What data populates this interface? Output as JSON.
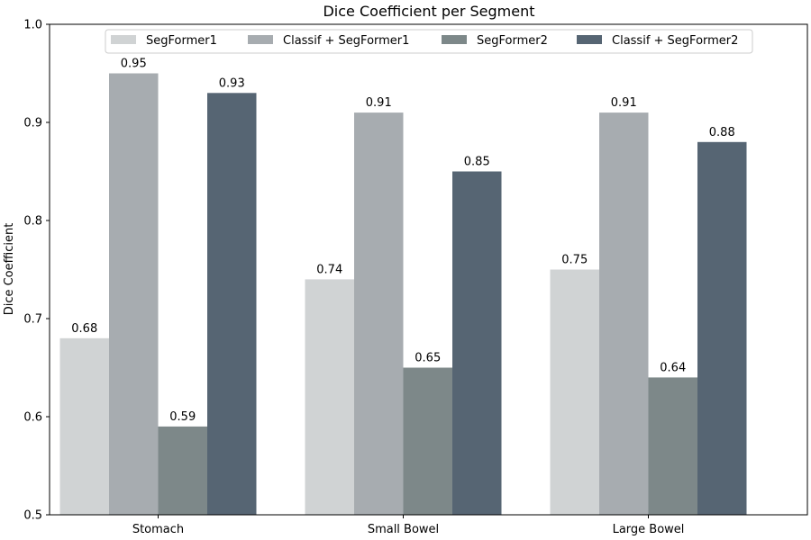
{
  "chart_data": {
    "type": "bar",
    "title": "Dice Coefficient per Segment",
    "xlabel": "",
    "ylabel": "Dice Coefficient",
    "categories": [
      "Stomach",
      "Small Bowel",
      "Large Bowel"
    ],
    "ylim": [
      0.5,
      1.0
    ],
    "yticks": [
      0.5,
      0.6,
      0.7,
      0.8,
      0.9,
      1.0
    ],
    "ytick_labels": [
      "0.5",
      "0.6",
      "0.7",
      "0.8",
      "0.9",
      "1.0"
    ],
    "grid": false,
    "legend_position": "top-center",
    "series": [
      {
        "name": "SegFormer1",
        "color": "#d0d3d4",
        "values": [
          0.68,
          0.74,
          0.75
        ],
        "labels": [
          "0.68",
          "0.74",
          "0.75"
        ]
      },
      {
        "name": "Classif + SegFormer1",
        "color": "#a7acb0",
        "values": [
          0.95,
          0.91,
          0.91
        ],
        "labels": [
          "0.95",
          "0.91",
          "0.91"
        ]
      },
      {
        "name": "SegFormer2",
        "color": "#7d8889",
        "values": [
          0.59,
          0.65,
          0.64
        ],
        "labels": [
          "0.59",
          "0.65",
          "0.64"
        ]
      },
      {
        "name": "Classif + SegFormer2",
        "color": "#566573",
        "values": [
          0.93,
          0.85,
          0.88
        ],
        "labels": [
          "0.93",
          "0.85",
          "0.88"
        ]
      }
    ]
  }
}
